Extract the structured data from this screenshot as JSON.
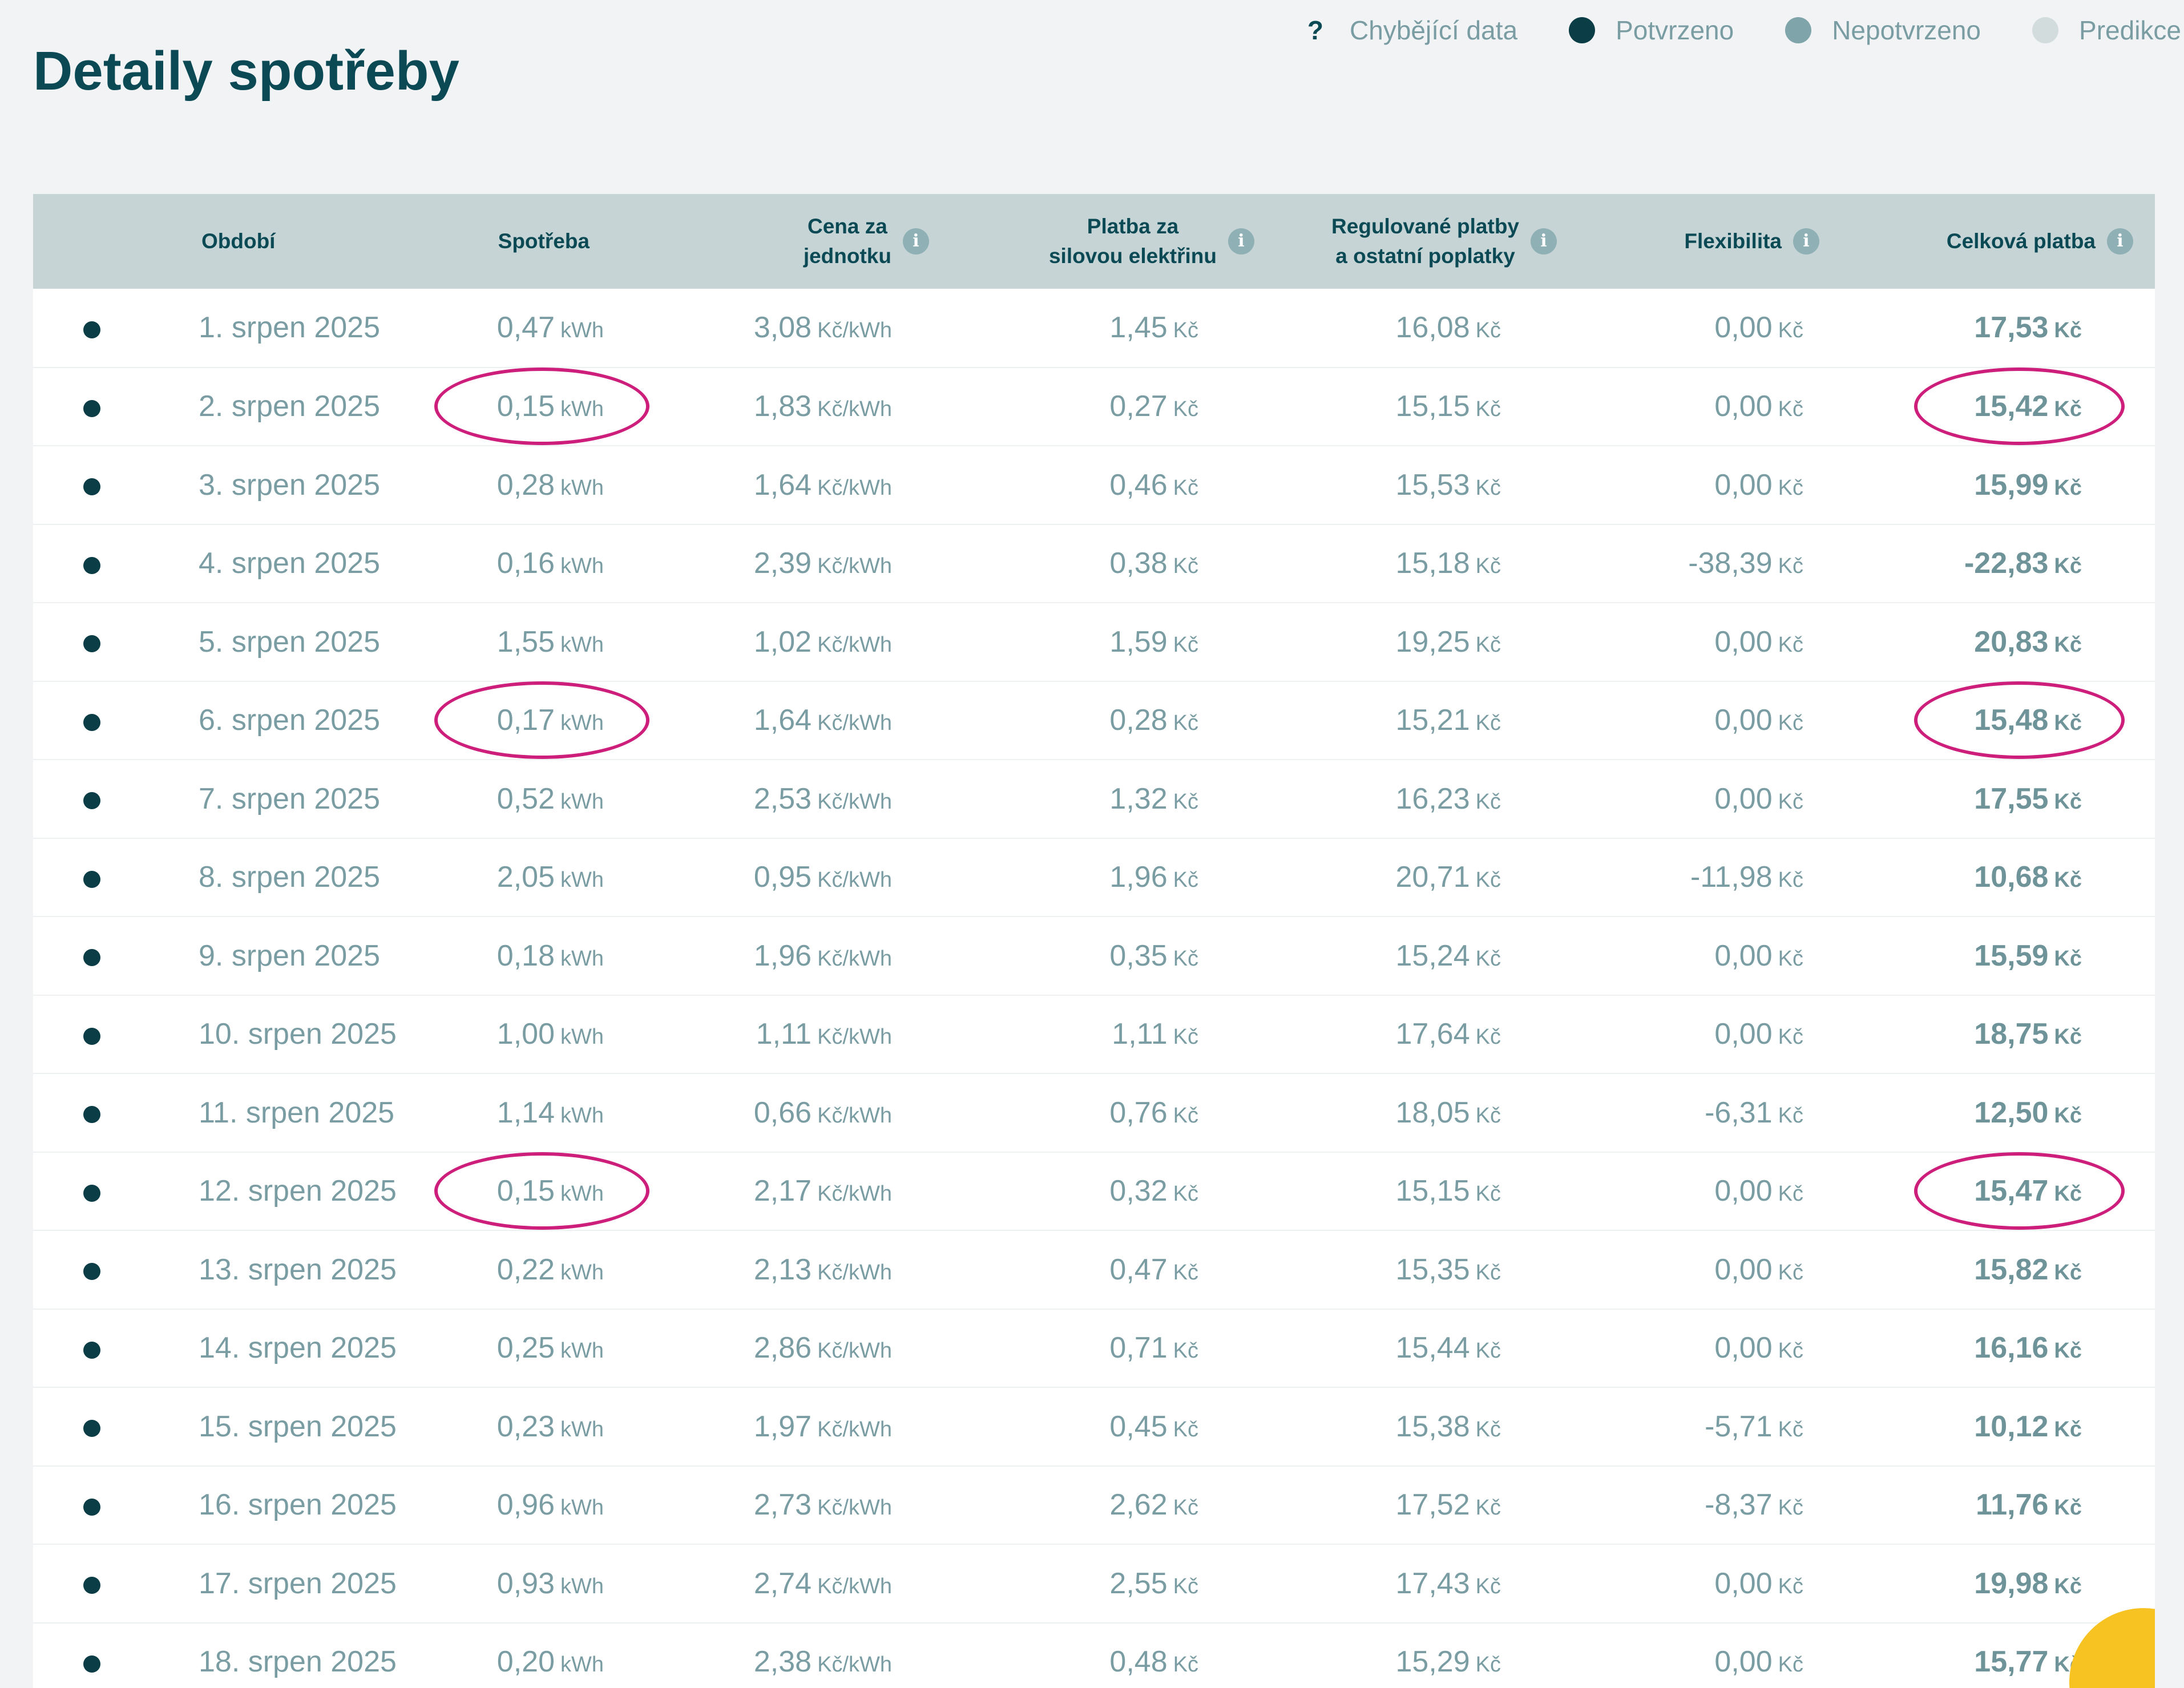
{
  "page": {
    "title": "Detaily spotřeby"
  },
  "legend": {
    "items": [
      {
        "mark": "?",
        "label": "Chybějící data"
      },
      {
        "color": "#0b3d47",
        "label": "Potvrzeno"
      },
      {
        "color": "#7fa4a9",
        "label": "Nepotvrzeno"
      },
      {
        "color": "#d3dcdd",
        "label": "Predikce"
      }
    ]
  },
  "table": {
    "headers": {
      "period": "Období",
      "consumption": "Spotřeba",
      "unit_price_l1": "Cena za",
      "unit_price_l2": "jednotku",
      "power_l1": "Platba za",
      "power_l2": "silovou elektřinu",
      "regulated_l1": "Regulované platby",
      "regulated_l2": "a ostatní poplatky",
      "flexibility": "Flexibilita",
      "total": "Celková platba",
      "info_icon": "i"
    },
    "units": {
      "consumption": "kWh",
      "price": "Kč/kWh",
      "currency": "Kč"
    },
    "rows": [
      {
        "period": "1. srpen 2025",
        "consumption": "0,47",
        "price": "3,08",
        "power": "1,45",
        "regulated": "16,08",
        "flex": "0,00",
        "total": "17,53",
        "highlight": false
      },
      {
        "period": "2. srpen 2025",
        "consumption": "0,15",
        "price": "1,83",
        "power": "0,27",
        "regulated": "15,15",
        "flex": "0,00",
        "total": "15,42",
        "highlight": true
      },
      {
        "period": "3. srpen 2025",
        "consumption": "0,28",
        "price": "1,64",
        "power": "0,46",
        "regulated": "15,53",
        "flex": "0,00",
        "total": "15,99",
        "highlight": false
      },
      {
        "period": "4. srpen 2025",
        "consumption": "0,16",
        "price": "2,39",
        "power": "0,38",
        "regulated": "15,18",
        "flex": "-38,39",
        "total": "-22,83",
        "highlight": false
      },
      {
        "period": "5. srpen 2025",
        "consumption": "1,55",
        "price": "1,02",
        "power": "1,59",
        "regulated": "19,25",
        "flex": "0,00",
        "total": "20,83",
        "highlight": false
      },
      {
        "period": "6. srpen 2025",
        "consumption": "0,17",
        "price": "1,64",
        "power": "0,28",
        "regulated": "15,21",
        "flex": "0,00",
        "total": "15,48",
        "highlight": true
      },
      {
        "period": "7. srpen 2025",
        "consumption": "0,52",
        "price": "2,53",
        "power": "1,32",
        "regulated": "16,23",
        "flex": "0,00",
        "total": "17,55",
        "highlight": false
      },
      {
        "period": "8. srpen 2025",
        "consumption": "2,05",
        "price": "0,95",
        "power": "1,96",
        "regulated": "20,71",
        "flex": "-11,98",
        "total": "10,68",
        "highlight": false
      },
      {
        "period": "9. srpen 2025",
        "consumption": "0,18",
        "price": "1,96",
        "power": "0,35",
        "regulated": "15,24",
        "flex": "0,00",
        "total": "15,59",
        "highlight": false
      },
      {
        "period": "10. srpen 2025",
        "consumption": "1,00",
        "price": "1,11",
        "power": "1,11",
        "regulated": "17,64",
        "flex": "0,00",
        "total": "18,75",
        "highlight": false
      },
      {
        "period": "11. srpen 2025",
        "consumption": "1,14",
        "price": "0,66",
        "power": "0,76",
        "regulated": "18,05",
        "flex": "-6,31",
        "total": "12,50",
        "highlight": false
      },
      {
        "period": "12. srpen 2025",
        "consumption": "0,15",
        "price": "2,17",
        "power": "0,32",
        "regulated": "15,15",
        "flex": "0,00",
        "total": "15,47",
        "highlight": true
      },
      {
        "period": "13. srpen 2025",
        "consumption": "0,22",
        "price": "2,13",
        "power": "0,47",
        "regulated": "15,35",
        "flex": "0,00",
        "total": "15,82",
        "highlight": false
      },
      {
        "period": "14. srpen 2025",
        "consumption": "0,25",
        "price": "2,86",
        "power": "0,71",
        "regulated": "15,44",
        "flex": "0,00",
        "total": "16,16",
        "highlight": false
      },
      {
        "period": "15. srpen 2025",
        "consumption": "0,23",
        "price": "1,97",
        "power": "0,45",
        "regulated": "15,38",
        "flex": "-5,71",
        "total": "10,12",
        "highlight": false
      },
      {
        "period": "16. srpen 2025",
        "consumption": "0,96",
        "price": "2,73",
        "power": "2,62",
        "regulated": "17,52",
        "flex": "-8,37",
        "total": "11,76",
        "highlight": false
      },
      {
        "period": "17. srpen 2025",
        "consumption": "0,93",
        "price": "2,74",
        "power": "2,55",
        "regulated": "17,43",
        "flex": "0,00",
        "total": "19,98",
        "highlight": false
      },
      {
        "period": "18. srpen 2025",
        "consumption": "0,20",
        "price": "2,38",
        "power": "0,48",
        "regulated": "15,29",
        "flex": "0,00",
        "total": "15,77",
        "highlight": false
      }
    ]
  }
}
